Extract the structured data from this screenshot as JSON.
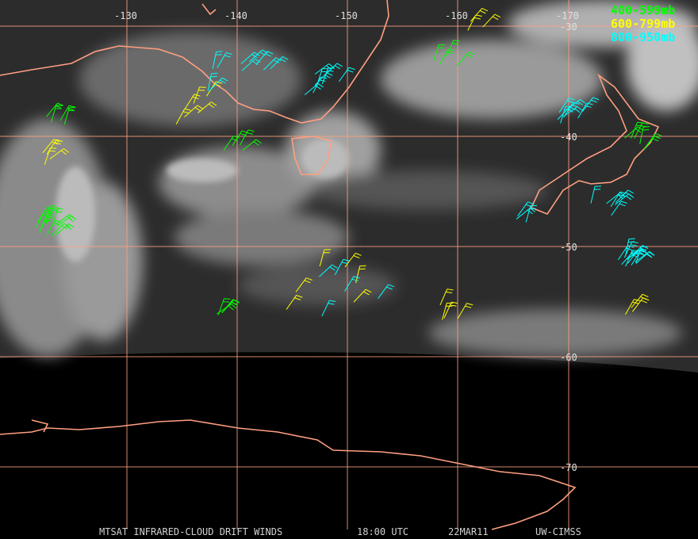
{
  "longitude_labels": [
    "-130",
    "-140",
    "-150",
    "-160",
    "-170"
  ],
  "latitude_labels": [
    "-30",
    "-40",
    "-50",
    "-60",
    "-70"
  ],
  "legend": [
    {
      "label": "400-599mb",
      "color": "#00ff00"
    },
    {
      "label": "600-799mb",
      "color": "#ffff00"
    },
    {
      "label": "800-950mb",
      "color": "#00ffff"
    }
  ],
  "footer": {
    "product": "MTSAT INFRARED-CLOUD DRIFT WINDS",
    "time": "18:00 UTC",
    "date": "22MAR11",
    "source": "UW-CIMSS"
  }
}
